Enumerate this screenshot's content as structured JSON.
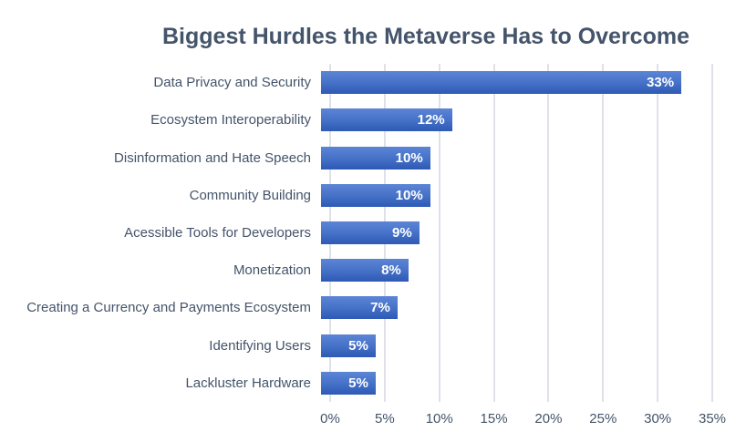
{
  "chart_data": {
    "type": "bar",
    "orientation": "horizontal",
    "title": "Biggest Hurdles the Metaverse Has to Overcome",
    "categories": [
      "Data Privacy and Security",
      "Ecosystem Interoperability",
      "Disinformation and Hate Speech",
      "Community Building",
      "Acessible Tools for Developers",
      "Monetization",
      "Creating a Currency and Payments Ecosystem",
      "Identifying Users",
      "Lackluster Hardware"
    ],
    "values": [
      33,
      12,
      10,
      10,
      9,
      8,
      7,
      5,
      5
    ],
    "value_labels": [
      "33%",
      "12%",
      "10%",
      "10%",
      "9%",
      "8%",
      "7%",
      "5%",
      "5%"
    ],
    "x_ticks": [
      "0%",
      "5%",
      "10%",
      "15%",
      "20%",
      "25%",
      "30%",
      "35%"
    ],
    "xlim": [
      0,
      35
    ],
    "grid": "vertical",
    "legend": "none",
    "colors": {
      "bar_gradient_top": "#5C85D6",
      "bar_gradient_bottom": "#2E59B5",
      "bar_solid": "#4472C4",
      "title_text": "#44546A",
      "axis_text": "#44546A",
      "gridline": "#DEE2E8",
      "data_label": "#FFFFFF",
      "background": "#FFFFFF"
    }
  }
}
